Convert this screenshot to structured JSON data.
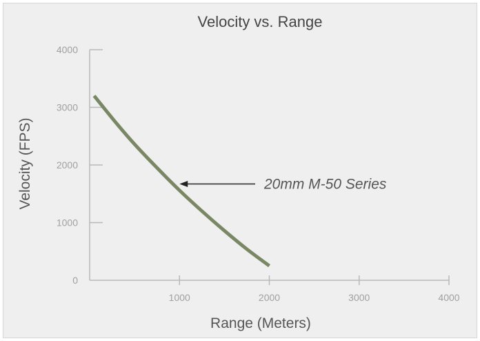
{
  "chart_data": {
    "type": "line",
    "title": "Velocity vs. Range",
    "xlabel": "Range (Meters)",
    "ylabel": "Velocity (FPS)",
    "xlim": [
      0,
      4000
    ],
    "ylim": [
      0,
      4000
    ],
    "x_ticks": [
      "1000",
      "2000",
      "3000",
      "4000"
    ],
    "y_ticks": [
      "0",
      "1000",
      "2000",
      "3000",
      "4000"
    ],
    "grid": false,
    "legend": "none",
    "series": [
      {
        "color": "#7a8764",
        "x": [
          50,
          300,
          500,
          750,
          1000,
          1250,
          1500,
          1750,
          2000
        ],
        "y": [
          3200,
          2720,
          2360,
          1950,
          1560,
          1200,
          860,
          540,
          250
        ]
      }
    ],
    "annotations": [
      {
        "text": "20mm M-50 Series",
        "arrow_to": {
          "x": 1000,
          "y": 1670
        }
      }
    ]
  }
}
